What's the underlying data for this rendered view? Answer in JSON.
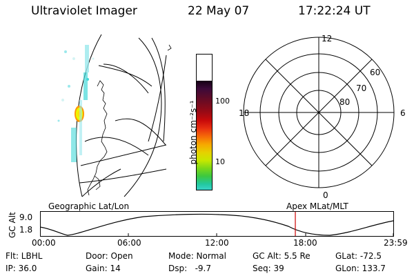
{
  "header": {
    "instrument": "Ultraviolet Imager",
    "date": "22 May 07",
    "time": "17:22:24 UT"
  },
  "colorbar": {
    "unit_label": "photon cm⁻²s⁻¹",
    "tick_high": "100",
    "tick_low": "10",
    "colors_top_to_bottom": [
      "#140014",
      "#3c0a3a",
      "#5a0b2a",
      "#7a0b1e",
      "#9c0a14",
      "#c80a0a",
      "#e83010",
      "#f56a08",
      "#f7a800",
      "#e6d000",
      "#c8e800",
      "#7cd818",
      "#3cc840",
      "#22c8a0",
      "#44d8d8",
      "#9ae8ec",
      "#d4f4f4",
      "#eefcfc"
    ]
  },
  "polar_grid": {
    "lat_labels": [
      "60",
      "70",
      "80"
    ],
    "mlt_labels": {
      "top": "12",
      "right": "6",
      "bottom": "0",
      "left": "18"
    }
  },
  "timeline": {
    "left_title": "Geographic Lat/Lon",
    "right_title": "Apex MLat/MLT",
    "y_axis_label": "GC Alt",
    "y_ticks": [
      "9.0",
      "1.8"
    ],
    "x_ticks": [
      "00:00",
      "06:00",
      "12:00",
      "18:00",
      "23:59"
    ],
    "current_time_color": "#cc0000"
  },
  "status": {
    "filter": "Flt: LBHL",
    "door": "Door: Open",
    "mode": "Mode: Normal",
    "gc_alt": "GC Alt: 5.5 Re",
    "glat": "GLat: -72.5",
    "ip": "IP: 36.0",
    "gain": "Gain: 14",
    "dsp": "Dsp:   -9.7",
    "seq": "Seq: 39",
    "glon": "GLon: 133.7"
  }
}
